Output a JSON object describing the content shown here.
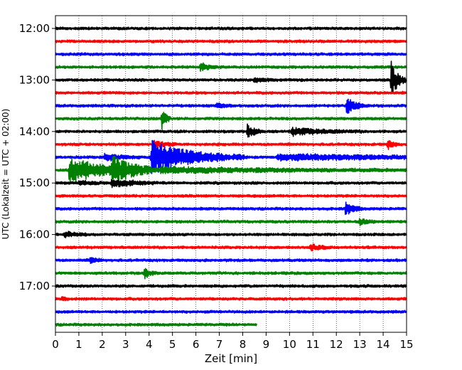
{
  "chart_data": {
    "type": "line",
    "title": "",
    "xlabel": "Zeit  [min]",
    "ylabel": "UTC (Lokalzeit = UTC + 02:00)",
    "xlim": [
      0,
      15
    ],
    "x_ticks": [
      "0",
      "1",
      "2",
      "3",
      "4",
      "5",
      "6",
      "7",
      "8",
      "9",
      "10",
      "11",
      "12",
      "13",
      "14",
      "15"
    ],
    "y_tick_labels": [
      "12:00",
      "13:00",
      "14:00",
      "15:00",
      "16:00",
      "17:00"
    ],
    "grid": "vertical-dotted",
    "trace_interval_min": 15,
    "trace_colors": [
      "#000000",
      "#ff0000",
      "#0000ff",
      "#008000"
    ],
    "traces": [
      {
        "start": "12:00",
        "end_min": 15,
        "events": []
      },
      {
        "start": "12:15",
        "end_min": 15,
        "events": []
      },
      {
        "start": "12:30",
        "end_min": 15,
        "events": []
      },
      {
        "start": "12:45",
        "end_min": 15,
        "events": [
          {
            "t": 6.2,
            "amp": 5,
            "dur": 0.4
          }
        ]
      },
      {
        "start": "13:00",
        "end_min": 15,
        "events": [
          {
            "t": 14.35,
            "amp": 26,
            "dur": 0.25
          },
          {
            "t": 8.5,
            "amp": 4,
            "dur": 0.3
          }
        ]
      },
      {
        "start": "13:15",
        "end_min": 15,
        "events": []
      },
      {
        "start": "13:30",
        "end_min": 15,
        "events": [
          {
            "t": 12.45,
            "amp": 12,
            "dur": 0.35
          },
          {
            "t": 6.9,
            "amp": 3,
            "dur": 0.3
          }
        ]
      },
      {
        "start": "13:45",
        "end_min": 15,
        "events": [
          {
            "t": 4.55,
            "amp": 16,
            "dur": 0.15
          }
        ]
      },
      {
        "start": "14:00",
        "end_min": 15,
        "events": [
          {
            "t": 8.2,
            "amp": 10,
            "dur": 0.3
          },
          {
            "t": 10.1,
            "amp": 5,
            "dur": 1.2
          }
        ]
      },
      {
        "start": "14:15",
        "end_min": 15,
        "events": [
          {
            "t": 14.2,
            "amp": 7,
            "dur": 0.2
          },
          {
            "t": 4.2,
            "amp": 5,
            "dur": 0.4
          }
        ]
      },
      {
        "start": "14:30",
        "end_min": 15,
        "events": [
          {
            "t": 4.1,
            "amp": 24,
            "dur": 1.6
          },
          {
            "t": 9.5,
            "amp": 4,
            "dur": 5.0
          },
          {
            "t": 2.1,
            "amp": 5,
            "dur": 0.6
          }
        ]
      },
      {
        "start": "14:45",
        "end_min": 15,
        "events": [
          {
            "t": 0.6,
            "amp": 18,
            "dur": 1.4
          },
          {
            "t": 2.4,
            "amp": 16,
            "dur": 0.8
          },
          {
            "t": 4.5,
            "amp": 4,
            "dur": 5.0
          }
        ]
      },
      {
        "start": "15:00",
        "end_min": 15,
        "events": [
          {
            "t": 2.4,
            "amp": 6,
            "dur": 0.8
          },
          {
            "t": 1.0,
            "amp": 3,
            "dur": 0.5
          }
        ]
      },
      {
        "start": "15:15",
        "end_min": 15,
        "events": []
      },
      {
        "start": "15:30",
        "end_min": 15,
        "events": [
          {
            "t": 12.4,
            "amp": 9,
            "dur": 0.3
          }
        ]
      },
      {
        "start": "15:45",
        "end_min": 15,
        "events": [
          {
            "t": 13.0,
            "amp": 4,
            "dur": 0.3
          }
        ]
      },
      {
        "start": "16:00",
        "end_min": 15,
        "events": [
          {
            "t": 0.4,
            "amp": 4,
            "dur": 0.4
          }
        ]
      },
      {
        "start": "16:15",
        "end_min": 15,
        "events": [
          {
            "t": 10.9,
            "amp": 4,
            "dur": 0.4
          }
        ]
      },
      {
        "start": "16:30",
        "end_min": 15,
        "events": [
          {
            "t": 1.5,
            "amp": 5,
            "dur": 0.2
          }
        ]
      },
      {
        "start": "16:45",
        "end_min": 15,
        "events": [
          {
            "t": 3.8,
            "amp": 8,
            "dur": 0.2
          }
        ]
      },
      {
        "start": "17:00",
        "end_min": 15,
        "events": []
      },
      {
        "start": "17:15",
        "end_min": 15,
        "events": [
          {
            "t": 0.3,
            "amp": 4,
            "dur": 0.15
          }
        ]
      },
      {
        "start": "17:30",
        "end_min": 15,
        "events": []
      },
      {
        "start": "17:45",
        "end_min": 8.6,
        "events": []
      }
    ]
  }
}
